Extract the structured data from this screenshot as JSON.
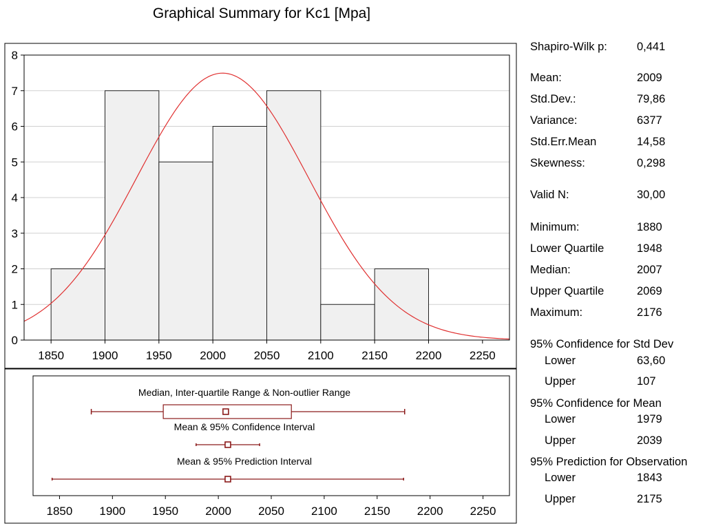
{
  "title": "Graphical Summary for Kc1  [Mpa]",
  "chart_data": [
    {
      "type": "bar",
      "subtype": "histogram",
      "bins": [
        {
          "from": 1850,
          "to": 1900,
          "count": 2
        },
        {
          "from": 1900,
          "to": 1950,
          "count": 7
        },
        {
          "from": 1950,
          "to": 2000,
          "count": 5
        },
        {
          "from": 2000,
          "to": 2050,
          "count": 6
        },
        {
          "from": 2050,
          "to": 2100,
          "count": 7
        },
        {
          "from": 2100,
          "to": 2150,
          "count": 1
        },
        {
          "from": 2150,
          "to": 2200,
          "count": 2
        }
      ],
      "x_ticks": [
        "1850",
        "1900",
        "1950",
        "2000",
        "2050",
        "2100",
        "2150",
        "2200",
        "2250"
      ],
      "y_ticks": [
        "0",
        "1",
        "2",
        "3",
        "4",
        "5",
        "6",
        "7",
        "8"
      ],
      "xlim": [
        1825,
        2275
      ],
      "ylim": [
        0,
        8
      ],
      "grid": true,
      "normal_curve": {
        "mean": 2009,
        "std": 79.86,
        "n": 30,
        "bin_width": 50,
        "color": "#e03030"
      },
      "bar_fill": "gradient-gray"
    },
    {
      "type": "box",
      "xlim": [
        1825,
        2275
      ],
      "x_ticks": [
        "1850",
        "1900",
        "1950",
        "2000",
        "2050",
        "2100",
        "2150",
        "2200",
        "2250"
      ],
      "color": "#8b1a1a",
      "rows": [
        {
          "label": "Median, Inter-quartile Range & Non-outlier Range",
          "min": 1880,
          "q1": 1948,
          "center": 2007,
          "q3": 2069,
          "max": 2176,
          "box": true
        },
        {
          "label": "Mean & 95% Confidence Interval",
          "min": 1979,
          "center": 2009,
          "max": 2039,
          "box": false
        },
        {
          "label": "Mean & 95% Prediction Interval",
          "min": 1843,
          "center": 2009,
          "max": 2175,
          "box": false
        }
      ]
    }
  ],
  "stats": {
    "shapiro": {
      "label": "Shapiro-Wilk p:",
      "value": "0,441"
    },
    "mean": {
      "label": "Mean:",
      "value": "2009"
    },
    "stddev": {
      "label": "Std.Dev.:",
      "value": "79,86"
    },
    "variance": {
      "label": "Variance:",
      "value": "6377"
    },
    "stderr": {
      "label": "Std.Err.Mean",
      "value": "14,58"
    },
    "skewness": {
      "label": "Skewness:",
      "value": "0,298"
    },
    "valid_n": {
      "label": "Valid N:",
      "value": "30,00"
    },
    "minimum": {
      "label": "Minimum:",
      "value": "1880"
    },
    "lower_quartile": {
      "label": "Lower Quartile",
      "value": "1948"
    },
    "median": {
      "label": "Median:",
      "value": "2007"
    },
    "upper_quartile": {
      "label": "Upper Quartile",
      "value": "2069"
    },
    "maximum": {
      "label": "Maximum:",
      "value": "2176"
    },
    "ci_std": {
      "heading": "95% Confidence for Std Dev",
      "lower": {
        "label": "Lower",
        "value": "63,60"
      },
      "upper": {
        "label": "Upper",
        "value": "107"
      }
    },
    "ci_mean": {
      "heading": "95% Confidence for Mean",
      "lower": {
        "label": "Lower",
        "value": "1979"
      },
      "upper": {
        "label": "Upper",
        "value": "2039"
      }
    },
    "pi_obs": {
      "heading": "95% Prediction for Observation",
      "lower": {
        "label": "Lower",
        "value": "1843"
      },
      "upper": {
        "label": "Upper",
        "value": "2175"
      }
    }
  }
}
